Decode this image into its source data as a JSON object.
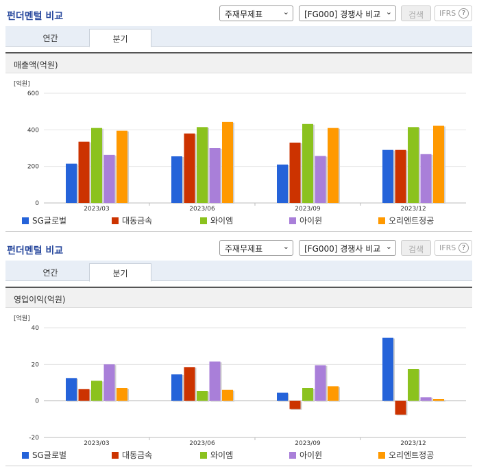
{
  "colors": [
    "#2563d9",
    "#cc3300",
    "#8bc21e",
    "#a97fd9",
    "#ff9900"
  ],
  "panels": [
    {
      "title": "펀더멘털 비교",
      "select1": "주재무제표",
      "select2": "[FG000] 경쟁사 비교",
      "search_label": "검색",
      "ifrs_label": "IFRS",
      "ifrs_help": "?",
      "tabs": [
        {
          "label": "연간"
        },
        {
          "label": "분기"
        }
      ],
      "active_tab": 1,
      "metric_label": "매출액(억원)",
      "unit": "[억원]",
      "chart_data": {
        "type": "bar",
        "categories": [
          "2023/03",
          "2023/06",
          "2023/09",
          "2023/12"
        ],
        "ylim": [
          0,
          600
        ],
        "yticks": [
          0,
          200,
          400,
          600
        ],
        "series": [
          {
            "name": "SG글로벌",
            "values": [
              215,
              255,
              210,
              290
            ]
          },
          {
            "name": "대동금속",
            "values": [
              335,
              380,
              330,
              290
            ]
          },
          {
            "name": "와이엠",
            "values": [
              410,
              415,
              432,
              415
            ]
          },
          {
            "name": "아이윈",
            "values": [
              263,
              300,
              257,
              267
            ]
          },
          {
            "name": "오리엔트정공",
            "values": [
              395,
              443,
              410,
              422
            ]
          }
        ]
      }
    },
    {
      "title": "펀더멘털 비교",
      "select1": "주재무제표",
      "select2": "[FG000] 경쟁사 비교",
      "search_label": "검색",
      "ifrs_label": "IFRS",
      "ifrs_help": "?",
      "tabs": [
        {
          "label": "연간"
        },
        {
          "label": "분기"
        }
      ],
      "active_tab": 1,
      "metric_label": "영업이익(억원)",
      "unit": "[억원]",
      "chart_data": {
        "type": "bar",
        "categories": [
          "2023/03",
          "2023/06",
          "2023/09",
          "2023/12"
        ],
        "ylim": [
          -20,
          40
        ],
        "yticks": [
          -20,
          0,
          20,
          40
        ],
        "series": [
          {
            "name": "SG글로벌",
            "values": [
              12.5,
              14.5,
              4.5,
              34.5
            ]
          },
          {
            "name": "대동금속",
            "values": [
              6.5,
              18.5,
              -4.5,
              -7.5
            ]
          },
          {
            "name": "와이엠",
            "values": [
              11,
              5.5,
              7,
              17.5
            ]
          },
          {
            "name": "아이윈",
            "values": [
              20,
              21.5,
              19.5,
              2
            ]
          },
          {
            "name": "오리엔트정공",
            "values": [
              7,
              6,
              8,
              1
            ]
          }
        ]
      }
    }
  ]
}
